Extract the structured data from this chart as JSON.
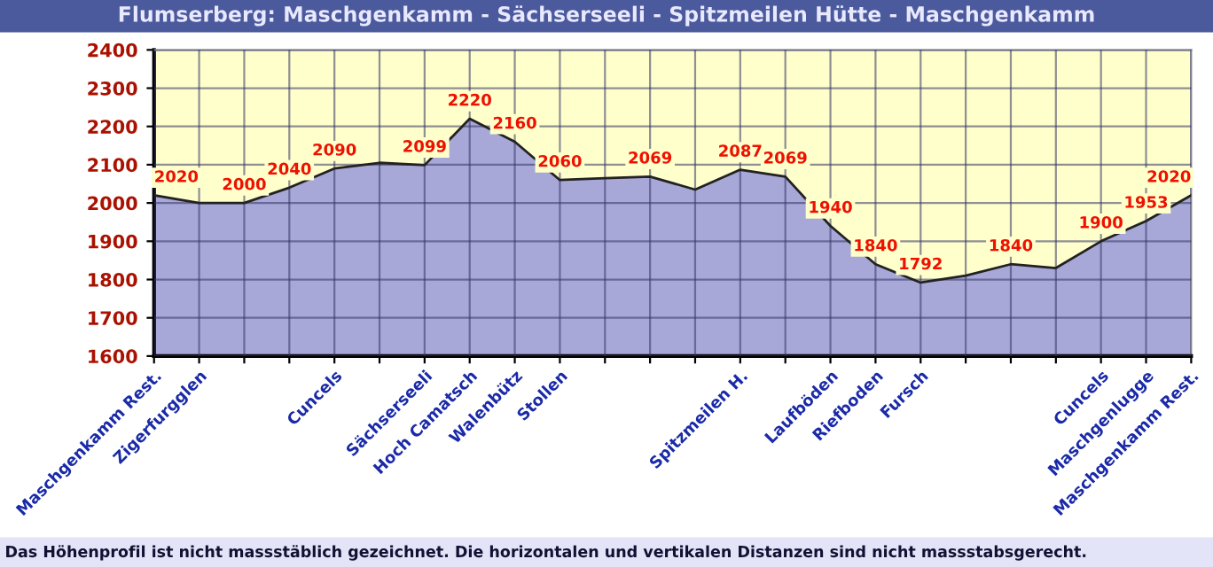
{
  "chart_data": {
    "type": "area",
    "title": "Flumserberg: Maschgenkamm - Sächserseeli - Spitzmeilen Hütte - Maschgenkamm",
    "categories": [
      "Maschgenkamm Rest.",
      "Zigerfurgglen",
      null,
      null,
      "Cuncels",
      null,
      "Sächserseeli",
      "Hoch Camatsch",
      "Walenbütz",
      "Stollen",
      null,
      null,
      null,
      "Spitzmeilen H.",
      null,
      "Laufböden",
      "Riefboden",
      "Fursch",
      null,
      null,
      null,
      "Cuncels",
      "Maschgenlugge",
      "Maschgenkamm Rest."
    ],
    "series": [
      {
        "color": "#a8a8d8",
        "values": [
          2020,
          2000,
          2000,
          2040,
          2090,
          2105,
          2099,
          2220,
          2160,
          2060,
          2065,
          2069,
          2035,
          2087,
          2069,
          1940,
          1840,
          1792,
          1810,
          1840,
          1830,
          1900,
          1953,
          2020
        ],
        "value_labels": [
          "2020",
          null,
          "2000",
          "2040",
          "2090",
          null,
          "2099",
          "2220",
          "2160",
          "2060",
          null,
          "2069",
          null,
          "2087",
          "2069",
          "1940",
          "1840",
          "1792",
          null,
          "1840",
          null,
          "1900",
          "1953",
          "2020"
        ]
      }
    ],
    "bands": [
      {
        "axis": "y",
        "from": 1600,
        "to": 2400,
        "color": "#ffffcc"
      }
    ],
    "ylim": [
      1600,
      2400
    ],
    "yticks": [
      1600,
      1700,
      1800,
      1900,
      2000,
      2100,
      2200,
      2300,
      2400
    ],
    "grid": true,
    "annotations": [
      "Das Höhenprofil ist nicht massstäblich gezeichnet. Die horizontalen und vertikalen Distanzen sind nicht massstabsgerecht."
    ]
  }
}
